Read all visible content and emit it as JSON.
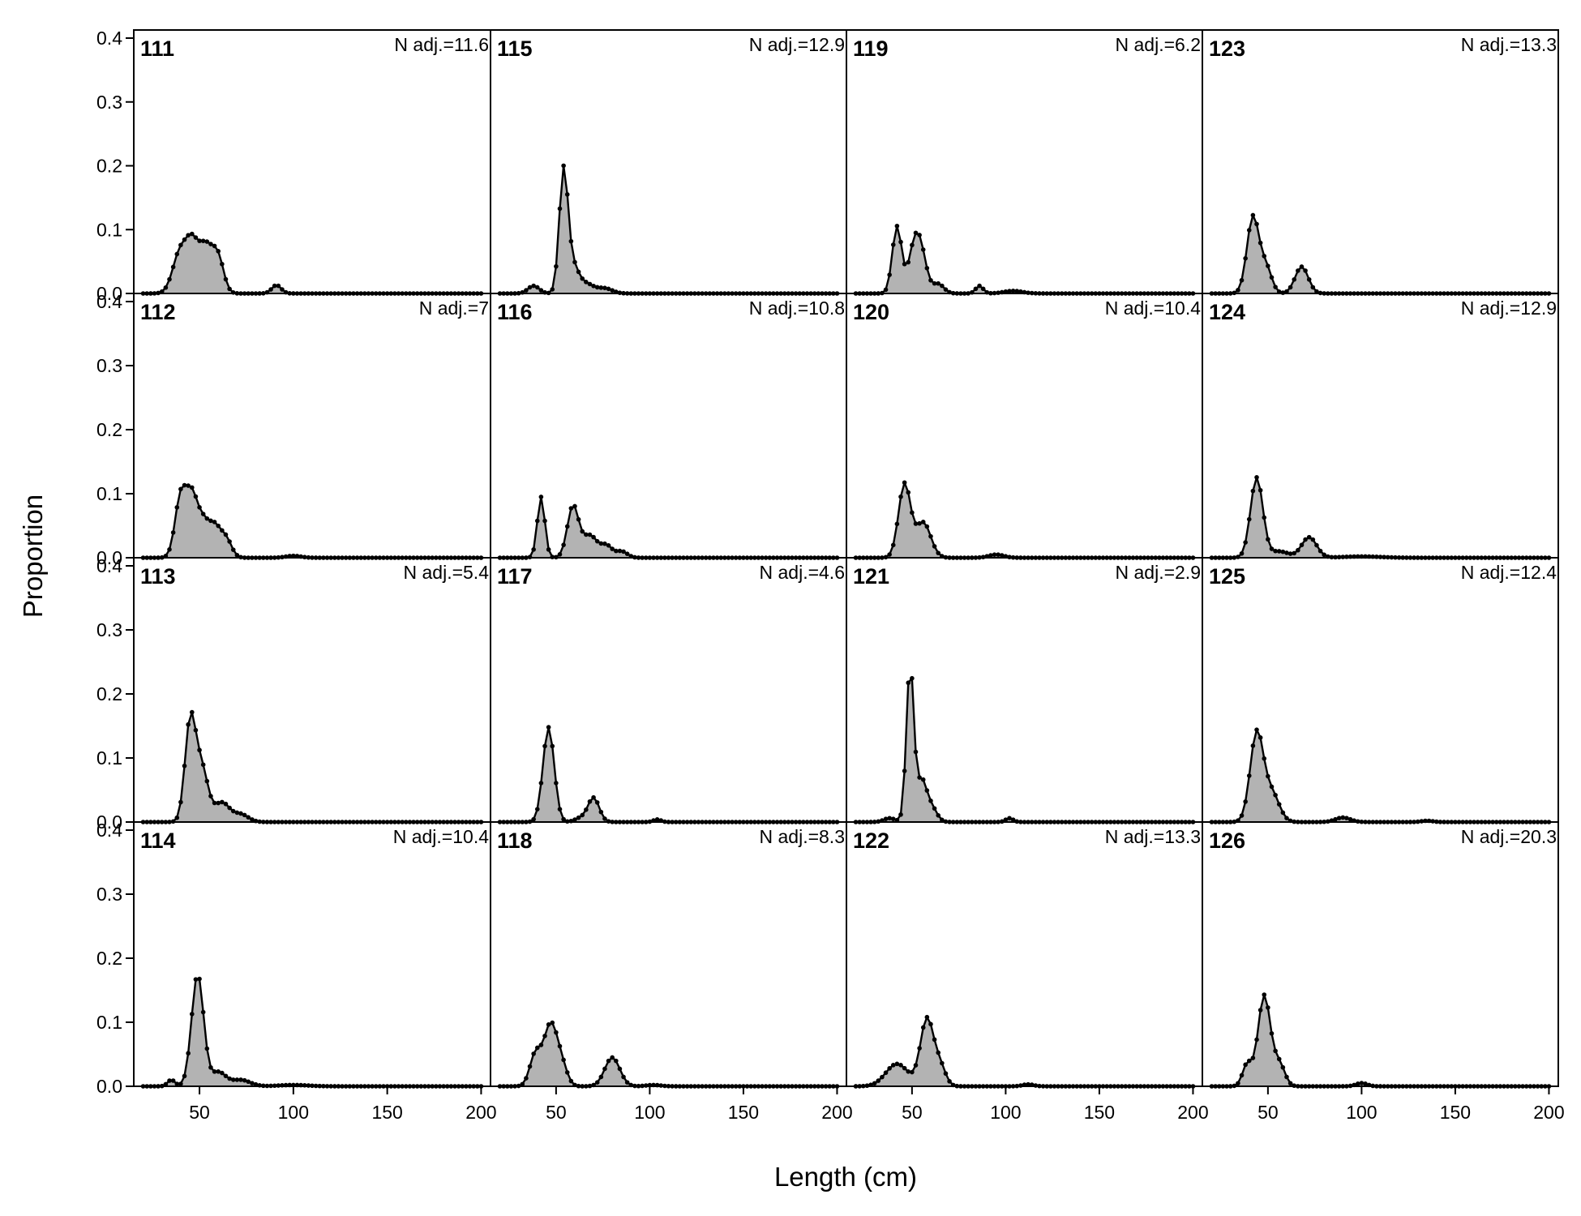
{
  "chart_data": {
    "type": "area",
    "xlabel": "Length (cm)",
    "ylabel": "Proportion",
    "xlim": [
      15,
      205
    ],
    "ylim": [
      0,
      0.4
    ],
    "x_ticks": [
      50,
      100,
      150,
      200
    ],
    "y_ticks": [
      0.0,
      0.1,
      0.2,
      0.3,
      0.4
    ],
    "x_tick_labels": [
      "50",
      "100",
      "150",
      "200"
    ],
    "y_tick_labels": [
      "0.0",
      "0.1",
      "0.2",
      "0.3",
      "0.4"
    ],
    "bin_start": 20,
    "bin_width": 2,
    "bin_end": 200,
    "fill_color": "#b3b3b3",
    "line_color": "#000000",
    "panels": [
      {
        "id": "111",
        "n_label": "N adj.=11.6",
        "peaks": [
          [
            40,
            0.068,
            4
          ],
          [
            46,
            0.055,
            3
          ],
          [
            53,
            0.075,
            4
          ],
          [
            60,
            0.05,
            3
          ],
          [
            91,
            0.013,
            2.5
          ]
        ]
      },
      {
        "id": "112",
        "n_label": "N adj.=7",
        "peaks": [
          [
            40,
            0.095,
            3
          ],
          [
            46,
            0.09,
            3
          ],
          [
            52,
            0.05,
            3
          ],
          [
            58,
            0.045,
            3
          ],
          [
            64,
            0.03,
            3
          ],
          [
            100,
            0.003,
            4
          ]
        ]
      },
      {
        "id": "113",
        "n_label": "N adj.=5.4",
        "peaks": [
          [
            45,
            0.15,
            2.8
          ],
          [
            51,
            0.085,
            3.5
          ],
          [
            62,
            0.03,
            4
          ],
          [
            72,
            0.012,
            4
          ]
        ]
      },
      {
        "id": "114",
        "n_label": "N adj.=10.4",
        "peaks": [
          [
            35,
            0.01,
            2
          ],
          [
            49,
            0.175,
            3.2
          ],
          [
            60,
            0.022,
            4
          ],
          [
            72,
            0.01,
            5
          ],
          [
            100,
            0.002,
            8
          ]
        ]
      },
      {
        "id": "115",
        "n_label": "N adj.=12.9",
        "peaks": [
          [
            38,
            0.012,
            3
          ],
          [
            54,
            0.19,
            2.3
          ],
          [
            59,
            0.04,
            3
          ],
          [
            66,
            0.015,
            4
          ],
          [
            76,
            0.008,
            4
          ]
        ]
      },
      {
        "id": "116",
        "n_label": "N adj.=10.8",
        "peaks": [
          [
            42,
            0.095,
            2
          ],
          [
            59,
            0.08,
            3
          ],
          [
            68,
            0.035,
            4
          ],
          [
            77,
            0.018,
            3
          ],
          [
            85,
            0.01,
            3
          ]
        ]
      },
      {
        "id": "117",
        "n_label": "N adj.=4.6",
        "peaks": [
          [
            46,
            0.148,
            3
          ],
          [
            70,
            0.038,
            3
          ],
          [
            63,
            0.006,
            3
          ],
          [
            104,
            0.004,
            2
          ]
        ]
      },
      {
        "id": "118",
        "n_label": "N adj.=8.3",
        "peaks": [
          [
            39,
            0.05,
            3
          ],
          [
            47,
            0.095,
            3.5
          ],
          [
            53,
            0.03,
            3
          ],
          [
            80,
            0.045,
            4
          ],
          [
            102,
            0.002,
            4
          ]
        ]
      },
      {
        "id": "119",
        "n_label": "N adj.=6.2",
        "peaks": [
          [
            42,
            0.105,
            2.5
          ],
          [
            51,
            0.065,
            3
          ],
          [
            55,
            0.055,
            3
          ],
          [
            64,
            0.015,
            3
          ],
          [
            86,
            0.012,
            2
          ],
          [
            104,
            0.004,
            5
          ]
        ]
      },
      {
        "id": "120",
        "n_label": "N adj.=10.4",
        "peaks": [
          [
            46,
            0.115,
            3.2
          ],
          [
            56,
            0.055,
            4
          ],
          [
            95,
            0.005,
            4
          ]
        ]
      },
      {
        "id": "121",
        "n_label": "N adj.=2.9",
        "peaks": [
          [
            38,
            0.006,
            3
          ],
          [
            49,
            0.245,
            2
          ],
          [
            55,
            0.06,
            2.5
          ],
          [
            60,
            0.025,
            3
          ],
          [
            102,
            0.006,
            2
          ]
        ]
      },
      {
        "id": "122",
        "n_label": "N adj.=13.3",
        "peaks": [
          [
            42,
            0.035,
            6
          ],
          [
            58,
            0.105,
            3.5
          ],
          [
            65,
            0.03,
            3
          ],
          [
            112,
            0.003,
            3
          ]
        ]
      },
      {
        "id": "123",
        "n_label": "N adj.=13.3",
        "peaks": [
          [
            42,
            0.12,
            3.2
          ],
          [
            49,
            0.04,
            3
          ],
          [
            68,
            0.042,
            3.5
          ]
        ]
      },
      {
        "id": "124",
        "n_label": "N adj.=12.9",
        "peaks": [
          [
            44,
            0.125,
            3.3
          ],
          [
            56,
            0.01,
            5
          ],
          [
            72,
            0.032,
            4
          ],
          [
            100,
            0.002,
            10
          ]
        ]
      },
      {
        "id": "125",
        "n_label": "N adj.=12.4",
        "peaks": [
          [
            44,
            0.138,
            3.5
          ],
          [
            52,
            0.045,
            4
          ],
          [
            90,
            0.007,
            4
          ],
          [
            135,
            0.002,
            3
          ]
        ]
      },
      {
        "id": "126",
        "n_label": "N adj.=20.3",
        "peaks": [
          [
            39,
            0.035,
            2.5
          ],
          [
            48,
            0.142,
            3.3
          ],
          [
            56,
            0.035,
            3
          ],
          [
            100,
            0.005,
            3
          ]
        ]
      }
    ]
  }
}
